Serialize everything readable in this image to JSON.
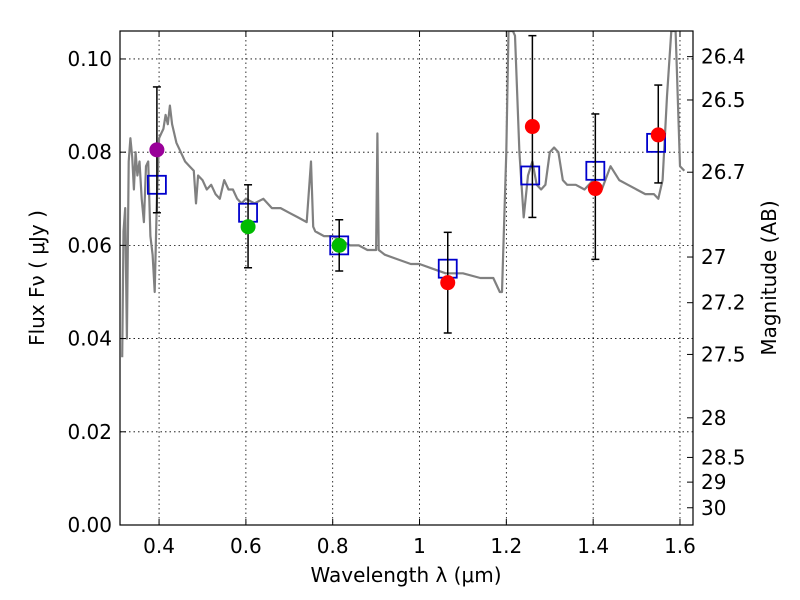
{
  "chart_data": {
    "type": "scatter",
    "xlabel": "Wavelength  λ (μm)",
    "ylabel": "Flux  Fν  ( μJy )",
    "ylabel_right": "Magnitude (AB)",
    "xlim": [
      0.31,
      1.63
    ],
    "ylim": [
      0.0,
      0.106
    ],
    "grid": true,
    "x_ticks": [
      0.4,
      0.6,
      0.8,
      1.0,
      1.2,
      1.4,
      1.6
    ],
    "x_tick_labels": [
      "0.4",
      "0.6",
      "0.8",
      "1",
      "1.2",
      "1.4",
      "1.6"
    ],
    "y_ticks": [
      0.0,
      0.02,
      0.04,
      0.06,
      0.08,
      0.1
    ],
    "y_tick_labels": [
      "0.00",
      "0.02",
      "0.04",
      "0.06",
      "0.08",
      "0.10"
    ],
    "right_ticks": [
      {
        "flux": 0.1005,
        "label": "26.4"
      },
      {
        "flux": 0.0912,
        "label": "26.5"
      },
      {
        "flux": 0.0757,
        "label": "26.7"
      },
      {
        "flux": 0.0575,
        "label": "27"
      },
      {
        "flux": 0.0477,
        "label": "27.2"
      },
      {
        "flux": 0.0366,
        "label": "27.5"
      },
      {
        "flux": 0.023,
        "label": "28"
      },
      {
        "flux": 0.0145,
        "label": "28.5"
      },
      {
        "flux": 0.0092,
        "label": "29"
      },
      {
        "flux": 0.0037,
        "label": "30"
      }
    ],
    "series": [
      {
        "name": "model-spectrum",
        "kind": "line",
        "color": "#808080",
        "x": [
          0.315,
          0.318,
          0.322,
          0.326,
          0.33,
          0.334,
          0.338,
          0.342,
          0.346,
          0.35,
          0.355,
          0.36,
          0.365,
          0.37,
          0.375,
          0.38,
          0.385,
          0.39,
          0.395,
          0.4,
          0.405,
          0.41,
          0.415,
          0.42,
          0.425,
          0.43,
          0.44,
          0.45,
          0.46,
          0.47,
          0.48,
          0.485,
          0.49,
          0.5,
          0.51,
          0.52,
          0.53,
          0.54,
          0.55,
          0.56,
          0.57,
          0.58,
          0.59,
          0.6,
          0.62,
          0.64,
          0.66,
          0.68,
          0.7,
          0.72,
          0.74,
          0.75,
          0.755,
          0.76,
          0.78,
          0.8,
          0.82,
          0.84,
          0.86,
          0.88,
          0.9,
          0.903,
          0.906,
          0.92,
          0.95,
          0.98,
          1.0,
          1.03,
          1.06,
          1.1,
          1.14,
          1.17,
          1.185,
          1.19,
          1.2,
          1.205,
          1.215,
          1.22,
          1.23,
          1.24,
          1.25,
          1.26,
          1.27,
          1.28,
          1.29,
          1.3,
          1.31,
          1.32,
          1.33,
          1.34,
          1.36,
          1.38,
          1.4,
          1.41,
          1.42,
          1.44,
          1.46,
          1.48,
          1.5,
          1.52,
          1.54,
          1.55,
          1.56,
          1.57,
          1.58,
          1.59,
          1.6,
          1.61
        ],
        "values": [
          0.036,
          0.063,
          0.068,
          0.04,
          0.078,
          0.083,
          0.079,
          0.072,
          0.08,
          0.075,
          0.078,
          0.07,
          0.065,
          0.077,
          0.078,
          0.062,
          0.058,
          0.05,
          0.07,
          0.083,
          0.084,
          0.085,
          0.088,
          0.086,
          0.09,
          0.086,
          0.082,
          0.08,
          0.078,
          0.077,
          0.076,
          0.069,
          0.075,
          0.074,
          0.072,
          0.073,
          0.071,
          0.07,
          0.074,
          0.072,
          0.072,
          0.07,
          0.069,
          0.07,
          0.069,
          0.07,
          0.068,
          0.068,
          0.067,
          0.066,
          0.065,
          0.078,
          0.064,
          0.063,
          0.062,
          0.062,
          0.061,
          0.06,
          0.06,
          0.059,
          0.059,
          0.084,
          0.059,
          0.058,
          0.057,
          0.056,
          0.056,
          0.055,
          0.054,
          0.054,
          0.053,
          0.053,
          0.05,
          0.05,
          0.08,
          0.106,
          0.106,
          0.105,
          0.08,
          0.066,
          0.075,
          0.078,
          0.073,
          0.072,
          0.073,
          0.08,
          0.081,
          0.08,
          0.074,
          0.073,
          0.073,
          0.072,
          0.074,
          0.073,
          0.072,
          0.077,
          0.074,
          0.073,
          0.072,
          0.071,
          0.071,
          0.07,
          0.074,
          0.092,
          0.106,
          0.106,
          0.077,
          0.076
        ]
      },
      {
        "name": "model-photometry",
        "kind": "open-square",
        "color": "#0000cc",
        "x": [
          0.395,
          0.605,
          0.815,
          1.065,
          1.255,
          1.405,
          1.545
        ],
        "values": [
          0.073,
          0.067,
          0.06,
          0.055,
          0.075,
          0.076,
          0.082
        ]
      },
      {
        "name": "observed-flux",
        "kind": "point",
        "x": [
          0.395,
          0.605,
          0.815,
          1.065,
          1.26,
          1.405,
          1.55
        ],
        "values": [
          0.0805,
          0.064,
          0.06,
          0.052,
          0.0855,
          0.0722,
          0.0837
        ],
        "errors_low": [
          0.0135,
          0.0088,
          0.0055,
          0.0108,
          0.0195,
          0.0152,
          0.0103
        ],
        "errors_high": [
          0.0135,
          0.009,
          0.0055,
          0.0108,
          0.0195,
          0.016,
          0.0107
        ],
        "colors": [
          "#990099",
          "#00bb00",
          "#00bb00",
          "#ff0000",
          "#ff0000",
          "#ff0000",
          "#ff0000"
        ]
      }
    ]
  }
}
